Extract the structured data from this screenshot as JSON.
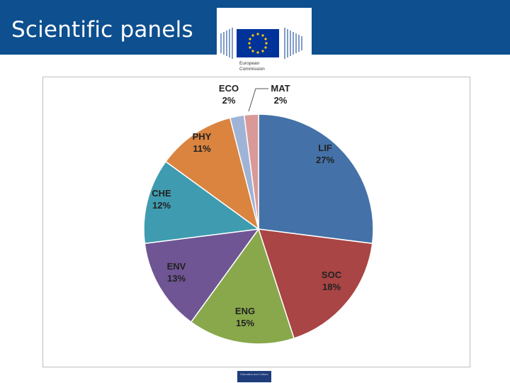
{
  "header": {
    "title": "Scientific panels",
    "color": "#0d4f8f"
  },
  "logo": {
    "line1": "European",
    "line2": "Commission",
    "flag_color": "#003399",
    "star_color": "#ffcc00"
  },
  "footer": {
    "badge_text": "Education and Culture"
  },
  "chart_data": {
    "type": "pie",
    "title": "",
    "start_angle_deg": 0,
    "direction": "clockwise",
    "slices": [
      {
        "label": "LIF",
        "pct_label": "27%",
        "value": 27,
        "color": "#4472a8"
      },
      {
        "label": "SOC",
        "pct_label": "18%",
        "value": 18,
        "color": "#a94544"
      },
      {
        "label": "ENG",
        "pct_label": "15%",
        "value": 15,
        "color": "#88a84b"
      },
      {
        "label": "ENV",
        "pct_label": "13%",
        "value": 13,
        "color": "#6f5593"
      },
      {
        "label": "CHE",
        "pct_label": "12%",
        "value": 12,
        "color": "#3f9cb0"
      },
      {
        "label": "PHY",
        "pct_label": "11%",
        "value": 11,
        "color": "#da843f"
      },
      {
        "label": "ECO",
        "pct_label": "2%",
        "value": 2,
        "color": "#9fb3d6"
      },
      {
        "label": "MAT",
        "pct_label": "2%",
        "value": 2,
        "color": "#d99999"
      }
    ]
  }
}
